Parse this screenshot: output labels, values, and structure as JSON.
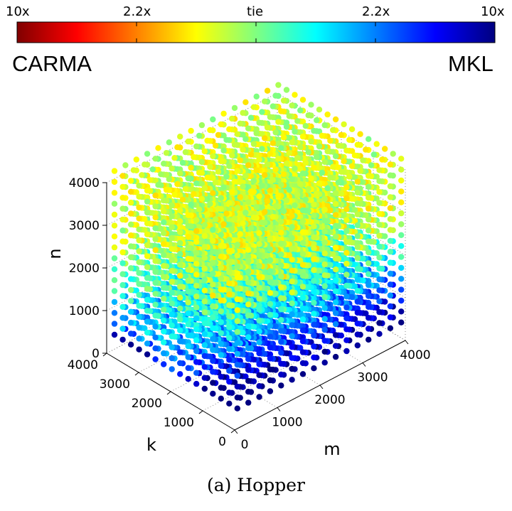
{
  "chart_data": {
    "type": "scatter",
    "variant": "3d-scatter",
    "axes": {
      "x": "m",
      "y": "k",
      "z": "n"
    },
    "xlabel": "m",
    "ylabel": "k",
    "zlabel": "n",
    "xlim": [
      0,
      4000
    ],
    "ylim": [
      0,
      4000
    ],
    "zlim": [
      0,
      4000
    ],
    "xticks": [
      "0",
      "1000",
      "2000",
      "3000",
      "4000"
    ],
    "yticks": [
      "0",
      "1000",
      "2000",
      "3000",
      "4000"
    ],
    "zticks": [
      "0",
      "1000",
      "2000",
      "3000",
      "4000"
    ],
    "grid": true,
    "colorbar": {
      "position": "top",
      "colormap": "jet",
      "tick_labels": [
        "10x",
        "2.2x",
        "tie",
        "2.2x",
        "10x"
      ],
      "left_label": "CARMA",
      "right_label": "MKL"
    },
    "grid_values": [
      256,
      512,
      768,
      1024,
      1280,
      1536,
      1792,
      2048,
      2304,
      2560,
      2816,
      3072,
      3328,
      3584,
      3840,
      4096
    ],
    "color_value_note": "color value v in [-1, 1]; -1 = 10x CARMA faster (dark red), 0 = tie (green), +1 = 10x MKL faster (dark blue)",
    "color_model": {
      "corner_value_m_k_n_small": -0.95,
      "base": 0.15,
      "small_n_penalty": -0.45,
      "small_k_penalty": -0.55,
      "small_m_penalty": -0.25
    }
  },
  "caption": "(a) Hopper"
}
